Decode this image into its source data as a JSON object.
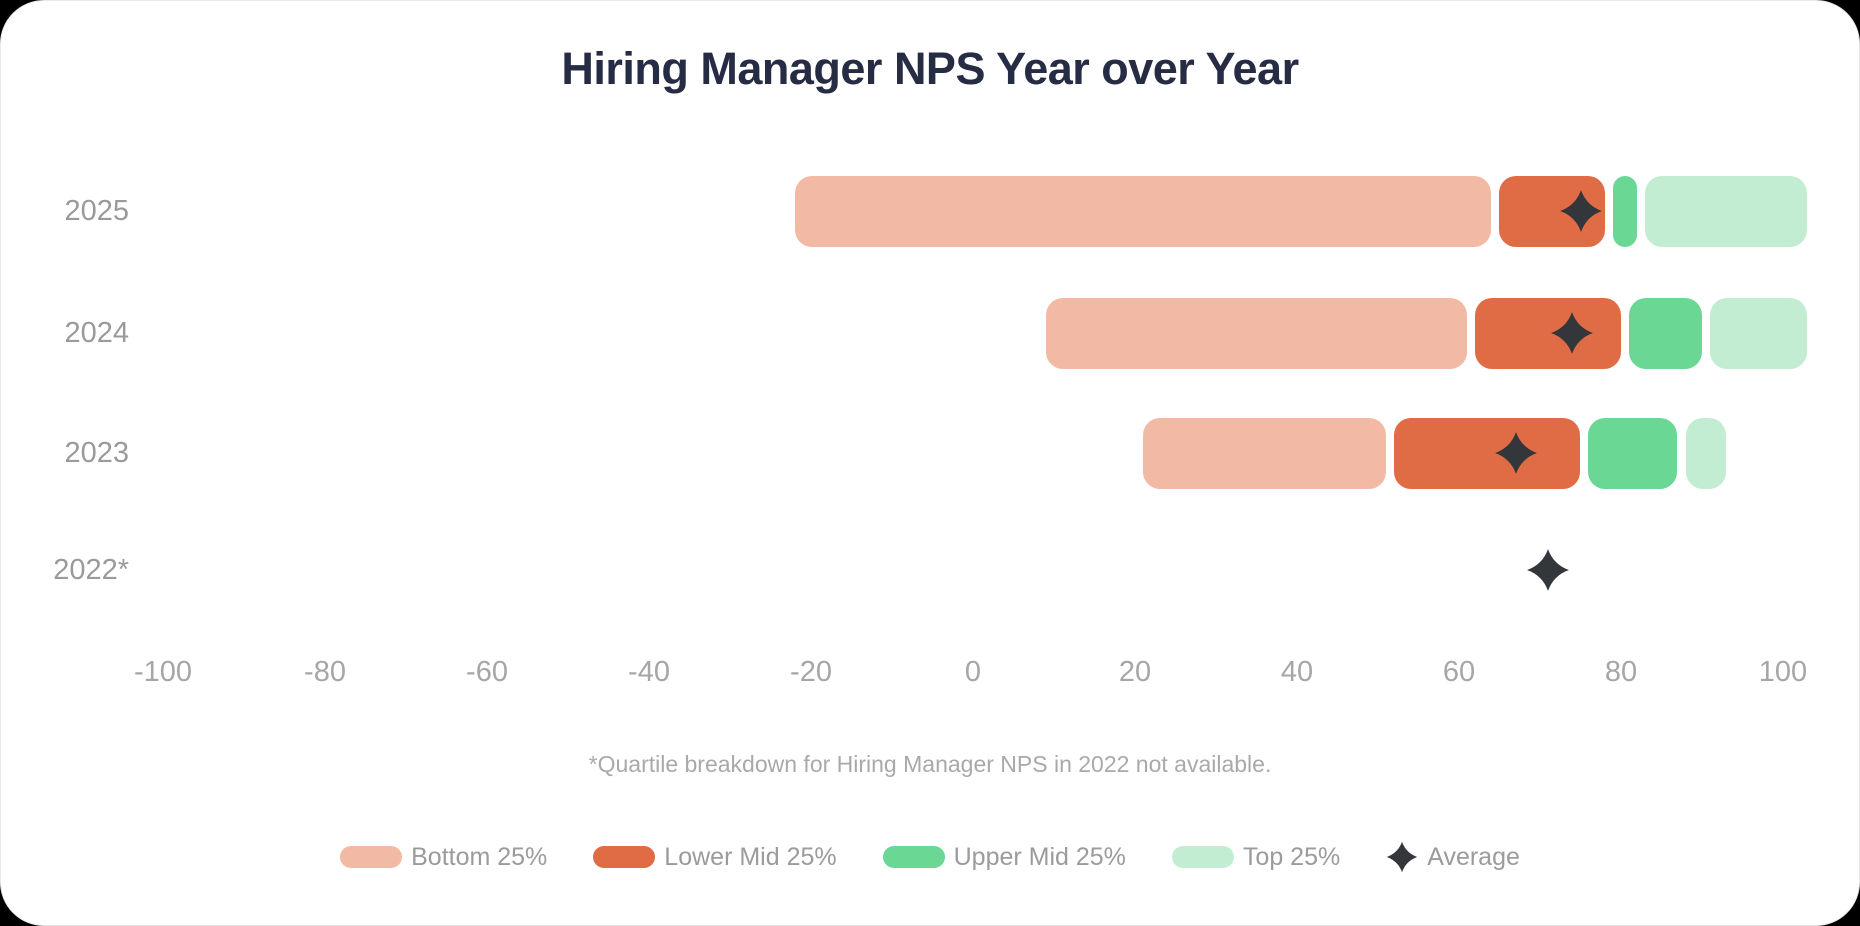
{
  "header": {
    "title": "Hiring Manager NPS Year over Year"
  },
  "footnote": "*Quartile breakdown for Hiring Manager NPS in 2022 not available.",
  "colors": {
    "bottom": "#F2BAA5",
    "lower_mid": "#E06C46",
    "upper_mid": "#6BD795",
    "top": "#C3EDD3",
    "average": "#33363A",
    "title_text": "#252C44",
    "axis_text": "#A6A6A6",
    "year_text": "#9A9A9A",
    "footnote_text": "#A9A9A9",
    "legend_text": "#9B9B9B",
    "card_background": "#FFFFFF"
  },
  "legend": {
    "items": [
      {
        "label": "Bottom 25%",
        "swatch": "pill",
        "color_key": "bottom"
      },
      {
        "label": "Lower Mid 25%",
        "swatch": "pill",
        "color_key": "lower_mid"
      },
      {
        "label": "Upper Mid 25%",
        "swatch": "pill",
        "color_key": "upper_mid"
      },
      {
        "label": "Top 25%",
        "swatch": "pill",
        "color_key": "top"
      },
      {
        "label": "Average",
        "swatch": "diamond",
        "color_key": "average"
      }
    ]
  },
  "chart_data": {
    "type": "bar",
    "subtype": "horizontal_stacked_quartile_ranges",
    "title": "Hiring Manager NPS Year over Year",
    "orientation": "horizontal",
    "grid": false,
    "legend_position": "bottom",
    "x_axis": {
      "label": "",
      "min": -100,
      "max": 100,
      "tick_step": 20,
      "ticks": [
        {
          "value": -100,
          "label": "-100"
        },
        {
          "value": -80,
          "label": "-80"
        },
        {
          "value": -60,
          "label": "-60"
        },
        {
          "value": -40,
          "label": "-40"
        },
        {
          "value": -20,
          "label": "-20"
        },
        {
          "value": 0,
          "label": "0"
        },
        {
          "value": 20,
          "label": "20"
        },
        {
          "value": 40,
          "label": "40"
        },
        {
          "value": 60,
          "label": "60"
        },
        {
          "value": 80,
          "label": "80"
        },
        {
          "value": 100,
          "label": "100"
        }
      ]
    },
    "series_labels": [
      "Bottom 25%",
      "Lower Mid 25%",
      "Upper Mid 25%",
      "Top 25%",
      "Average"
    ],
    "rows": [
      {
        "year": "2025",
        "min": -22,
        "q1": 64,
        "median": 77,
        "q3": 80,
        "max": 100,
        "average": 75
      },
      {
        "year": "2024",
        "min": 9,
        "q1": 61,
        "median": 79,
        "q3": 88,
        "max": 100,
        "average": 74
      },
      {
        "year": "2023",
        "min": 21,
        "q1": 51,
        "median": 74,
        "q3": 85,
        "max": 90,
        "average": 67
      },
      {
        "year": "2022*",
        "min": null,
        "q1": null,
        "median": null,
        "q3": null,
        "max": null,
        "average": 71
      }
    ]
  }
}
